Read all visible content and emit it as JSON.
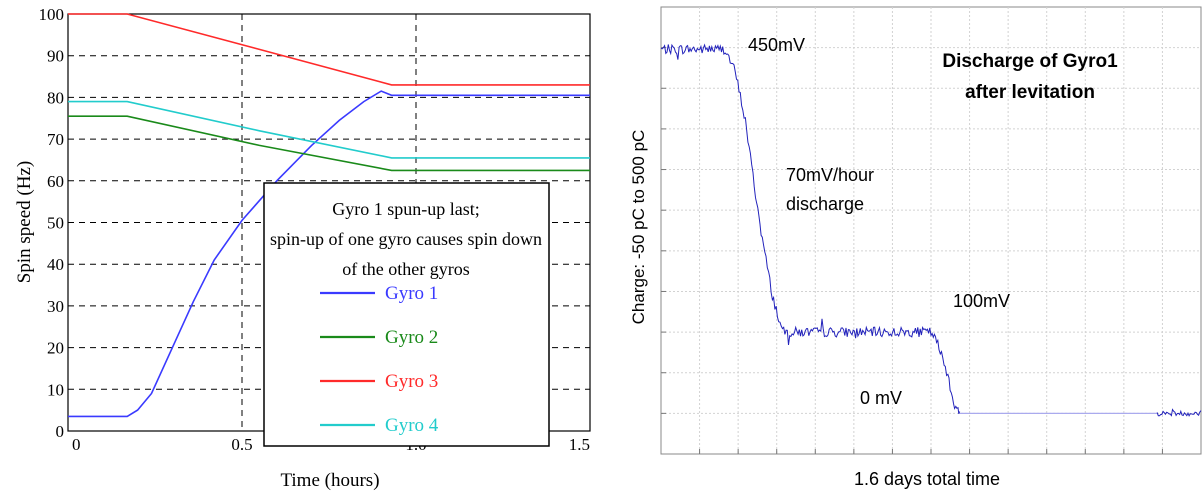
{
  "chart_data": [
    {
      "type": "line",
      "title": "",
      "xlabel": "Time (hours)",
      "ylabel": "Spin speed (Hz)",
      "xlim": [
        0,
        1.5
      ],
      "ylim": [
        0,
        100
      ],
      "x_ticks": [
        "0",
        "0.5",
        "1.0",
        "1.5"
      ],
      "y_ticks": [
        "0",
        "10",
        "20",
        "30",
        "40",
        "50",
        "60",
        "70",
        "80",
        "90",
        "100"
      ],
      "grid": true,
      "legend_position": "lower-right",
      "legend_title": "Gyro 1 spun-up last; spin-up of one gyro causes spin down of the other gyros",
      "series": [
        {
          "name": "Gyro 1",
          "color": "#3a3aff",
          "points": [
            [
              0,
              3.5
            ],
            [
              0.17,
              3.5
            ],
            [
              0.2,
              5
            ],
            [
              0.24,
              9
            ],
            [
              0.3,
              20
            ],
            [
              0.36,
              31
            ],
            [
              0.42,
              41
            ],
            [
              0.5,
              50.5
            ],
            [
              0.6,
              60
            ],
            [
              0.7,
              68.5
            ],
            [
              0.78,
              74.5
            ],
            [
              0.85,
              79
            ],
            [
              0.9,
              81.5
            ],
            [
              0.93,
              80.5
            ],
            [
              1.0,
              80.5
            ],
            [
              1.5,
              80.5
            ]
          ]
        },
        {
          "name": "Gyro 2",
          "color": "#1a8a1a",
          "points": [
            [
              0,
              75.5
            ],
            [
              0.17,
              75.5
            ],
            [
              0.55,
              68.5
            ],
            [
              0.93,
              62.5
            ],
            [
              1.5,
              62.5
            ]
          ]
        },
        {
          "name": "Gyro 3",
          "color": "#ff2a2a",
          "points": [
            [
              0,
              100
            ],
            [
              0.17,
              100
            ],
            [
              0.55,
              91.5
            ],
            [
              0.93,
              83
            ],
            [
              1.5,
              83
            ]
          ]
        },
        {
          "name": "Gyro 4",
          "color": "#22cccc",
          "points": [
            [
              0,
              79
            ],
            [
              0.17,
              79
            ],
            [
              0.55,
              72
            ],
            [
              0.93,
              65.5
            ],
            [
              1.5,
              65.5
            ]
          ]
        }
      ]
    },
    {
      "type": "line",
      "title": "Discharge of Gyro1 after levitation",
      "xlabel": "1.6 days total time",
      "ylabel": "Charge: -50 pC to 500 pC",
      "xlim": [
        0,
        1.6
      ],
      "ylim": [
        -50,
        500
      ],
      "grid": true,
      "annotations": [
        "450mV",
        "70mV/hour discharge",
        "100mV",
        "0 mV"
      ],
      "series": [
        {
          "name": "",
          "color": "#2222bb",
          "points": [
            [
              0,
              448
            ],
            [
              0.19,
              448
            ],
            [
              0.22,
              420
            ],
            [
              0.25,
              360
            ],
            [
              0.28,
              270
            ],
            [
              0.3,
              215
            ],
            [
              0.33,
              145
            ],
            [
              0.36,
              100
            ],
            [
              0.8,
              100
            ],
            [
              0.82,
              85
            ],
            [
              0.85,
              48
            ],
            [
              0.87,
              10
            ],
            [
              0.88,
              2
            ],
            [
              0.885,
              0
            ]
          ],
          "noise": 6
        },
        {
          "name": "",
          "color": "#aaaaee",
          "points": [
            [
              0.885,
              0
            ],
            [
              1.47,
              0
            ]
          ]
        },
        {
          "name": "",
          "color": "#2222bb",
          "points": [
            [
              1.47,
              0
            ],
            [
              1.6,
              0
            ]
          ],
          "noise": 3
        }
      ]
    }
  ]
}
